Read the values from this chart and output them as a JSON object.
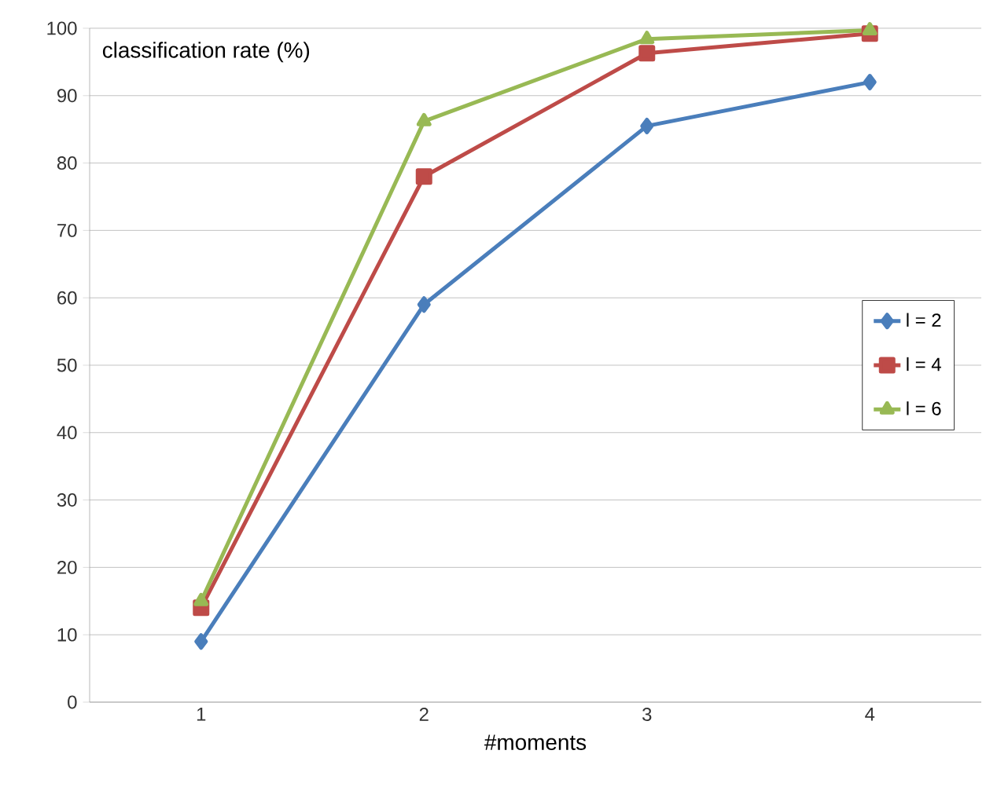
{
  "chart_data": {
    "type": "line",
    "ylabel": "classification rate (%)",
    "xlabel": "#moments",
    "categories": [
      "1",
      "2",
      "3",
      "4"
    ],
    "series": [
      {
        "name": "l = 2",
        "color": "#4a7ebb",
        "marker": "diamond",
        "values": [
          9,
          59,
          85.5,
          92
        ]
      },
      {
        "name": "l = 4",
        "color": "#be4b48",
        "marker": "square",
        "values": [
          14,
          78,
          96.3,
          99.2
        ]
      },
      {
        "name": "l = 6",
        "color": "#98b954",
        "marker": "triangle",
        "values": [
          15,
          86.2,
          98.4,
          99.7
        ]
      }
    ],
    "ylim": [
      0,
      100
    ],
    "yticks": [
      0,
      10,
      20,
      30,
      40,
      50,
      60,
      70,
      80,
      90,
      100
    ],
    "grid": "y",
    "legend": "right",
    "line_style": "solid"
  }
}
